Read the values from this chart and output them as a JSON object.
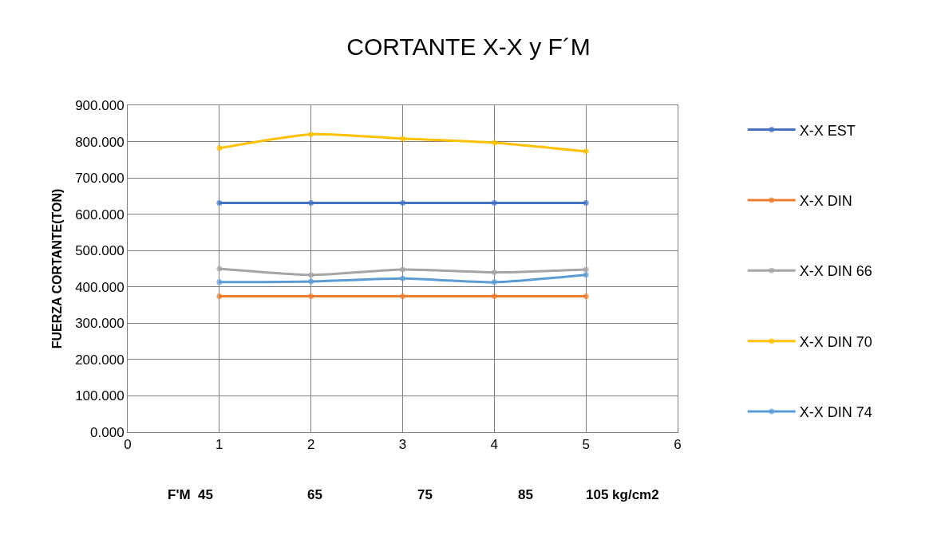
{
  "chart_data": {
    "type": "line",
    "title": "CORTANTE X-X y F´M",
    "ylabel": "FUERZA CORTANTE(TON)",
    "x": [
      1,
      2,
      3,
      4,
      5
    ],
    "series": [
      {
        "name": "X-X EST",
        "color": "#4472c4",
        "values": [
          631,
          631,
          631,
          631,
          631
        ]
      },
      {
        "name": "X-X DIN",
        "color": "#ed7d31",
        "values": [
          374,
          374,
          374,
          374,
          374
        ]
      },
      {
        "name": "X-X DIN 66",
        "color": "#a5a5a5",
        "values": [
          450,
          433,
          448,
          440,
          448
        ]
      },
      {
        "name": "X-X DIN 70",
        "color": "#ffc000",
        "values": [
          782,
          820,
          808,
          797,
          773
        ]
      },
      {
        "name": "X-X DIN 74",
        "color": "#5b9bd5",
        "values": [
          413,
          415,
          423,
          413,
          433
        ]
      }
    ],
    "xlim": [
      0,
      6
    ],
    "xticks": [
      0,
      1,
      2,
      3,
      4,
      5,
      6
    ],
    "ylim": [
      0,
      900
    ],
    "yticks": [
      {
        "value": 0,
        "label": "0.000"
      },
      {
        "value": 100,
        "label": "100.000"
      },
      {
        "value": 200,
        "label": "200.000"
      },
      {
        "value": 300,
        "label": "300.000"
      },
      {
        "value": 400,
        "label": "400.000"
      },
      {
        "value": 500,
        "label": "500.000"
      },
      {
        "value": 600,
        "label": "600.000"
      },
      {
        "value": 700,
        "label": "700.000"
      },
      {
        "value": 800,
        "label": "800.000"
      },
      {
        "value": 900,
        "label": "900.000"
      }
    ],
    "annotations": [
      "F'M  45",
      "65",
      "75",
      "85",
      "105 kg/cm2"
    ],
    "grid": true,
    "legend": "right",
    "marker": "circle",
    "line_style": "solid"
  }
}
